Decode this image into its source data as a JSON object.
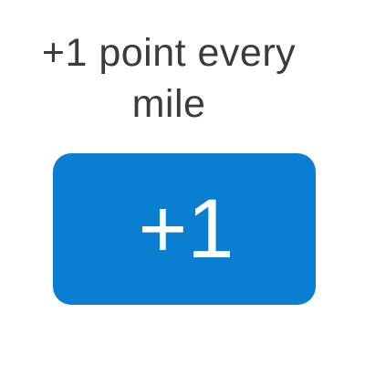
{
  "headline": {
    "line1": "+1 point every",
    "line2": "mile"
  },
  "badge": {
    "value": "+1",
    "color": "#0a7fd2",
    "text_color": "#ffffff"
  }
}
